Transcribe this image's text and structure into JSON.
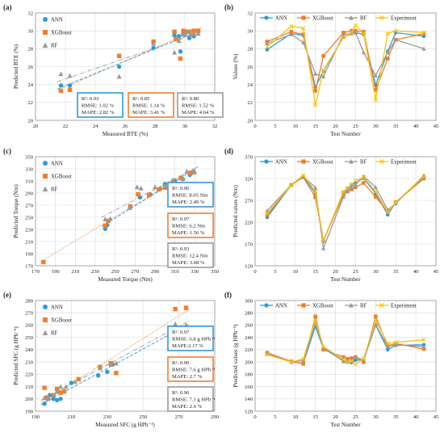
{
  "colors": {
    "ann": "#2e9bd6",
    "xgboost": "#f07e2c",
    "rf": "#9a9a9a",
    "experiment": "#f7c315",
    "box_ann": "#2e9bd6",
    "box_xgb": "#f07e2c",
    "box_rf": "#9a9a9a"
  },
  "chart_data": [
    {
      "panel": "(a)",
      "type": "scatter",
      "xlabel": "Measured BTE (%)",
      "ylabel": "Predicted BTE (%)",
      "xlim": [
        20,
        32
      ],
      "ylim": [
        20,
        32
      ],
      "xticks": [
        20,
        22,
        24,
        26,
        28,
        30,
        32
      ],
      "yticks": [
        20,
        22,
        24,
        26,
        28,
        30,
        32
      ],
      "legend": [
        "ANN",
        "XGBoost",
        "RF"
      ],
      "series": [
        {
          "name": "ANN",
          "points": [
            [
              21.7,
              23.9
            ],
            [
              22.3,
              23.9
            ],
            [
              25.6,
              26.0
            ],
            [
              27.9,
              28.1
            ],
            [
              29.3,
              29.5
            ],
            [
              29.6,
              29.4
            ],
            [
              29.7,
              27.7
            ],
            [
              29.9,
              29.8
            ],
            [
              30.0,
              29.6
            ],
            [
              30.1,
              29.9
            ],
            [
              30.3,
              29.2
            ],
            [
              30.6,
              29.4
            ]
          ]
        },
        {
          "name": "XGBoost",
          "points": [
            [
              21.7,
              23.3
            ],
            [
              22.3,
              23.4
            ],
            [
              25.6,
              27.2
            ],
            [
              27.9,
              28.8
            ],
            [
              29.3,
              29.9
            ],
            [
              29.4,
              29.1
            ],
            [
              29.7,
              26.9
            ],
            [
              29.9,
              30.0
            ],
            [
              30.0,
              29.8
            ],
            [
              30.3,
              29.9
            ],
            [
              30.6,
              30.0
            ],
            [
              30.9,
              30.0
            ]
          ]
        },
        {
          "name": "RF",
          "points": [
            [
              21.7,
              25.2
            ],
            [
              22.3,
              25.0
            ],
            [
              25.6,
              24.9
            ],
            [
              27.9,
              28.6
            ],
            [
              29.3,
              27.6
            ],
            [
              29.6,
              28.9
            ],
            [
              29.8,
              29.6
            ],
            [
              30.0,
              29.6
            ],
            [
              30.2,
              29.9
            ],
            [
              30.4,
              29.6
            ],
            [
              30.6,
              29.7
            ],
            [
              30.9,
              29.7
            ]
          ]
        }
      ],
      "stats": [
        {
          "model": "ANN",
          "r2": "R²: 0.93",
          "rmse": "RMSE: 1.02 %",
          "mape": "MAPE: 2.82 %"
        },
        {
          "model": "XGBoost",
          "r2": "R²: 0.85",
          "rmse": "RMSE: 1.14 %",
          "mape": "MAPE: 3.41 %"
        },
        {
          "model": "RF",
          "r2": "R²: 0.80",
          "rmse": "RMSE: 1.52 %",
          "mape": "MAPE: 4.64 %"
        }
      ]
    },
    {
      "panel": "(b)",
      "type": "line",
      "xlabel": "Test Number",
      "ylabel": "Values (%)",
      "xlim": [
        0,
        45
      ],
      "ylim": [
        20,
        32
      ],
      "xticks": [
        0,
        5,
        10,
        15,
        20,
        25,
        30,
        35,
        40,
        45
      ],
      "yticks": [
        20,
        22,
        24,
        26,
        28,
        30,
        32
      ],
      "x": [
        3,
        9,
        12,
        15,
        17,
        22,
        24,
        25,
        27,
        30,
        33,
        35,
        42
      ],
      "legend": [
        "ANN",
        "XGBoost",
        "RF",
        "Experiment"
      ],
      "series": [
        {
          "name": "ANN",
          "values": [
            27.9,
            29.7,
            29.5,
            23.7,
            25.5,
            29.3,
            29.7,
            29.8,
            29.6,
            23.9,
            27.7,
            29.8,
            29.4
          ]
        },
        {
          "name": "XGBoost",
          "values": [
            28.8,
            29.9,
            29.6,
            23.3,
            27.2,
            29.8,
            30.0,
            30.0,
            29.9,
            23.4,
            26.9,
            29.0,
            29.7
          ]
        },
        {
          "name": "RF",
          "values": [
            28.6,
            29.6,
            28.7,
            25.2,
            24.9,
            29.6,
            29.7,
            29.8,
            27.6,
            25.0,
            27.6,
            29.0,
            28.0
          ]
        },
        {
          "name": "Experiment",
          "values": [
            28.2,
            30.5,
            30.3,
            21.7,
            25.6,
            29.3,
            29.8,
            30.6,
            29.7,
            22.3,
            29.7,
            30.0,
            29.8
          ]
        }
      ]
    },
    {
      "panel": "(c)",
      "type": "scatter",
      "xlabel": "Measured Torque (Nm)",
      "ylabel": "Predicted Torque (Nm)",
      "xlim": [
        170,
        350
      ],
      "ylim": [
        170,
        350
      ],
      "xticks": [
        170,
        190,
        210,
        230,
        250,
        270,
        290,
        310,
        330,
        350
      ],
      "yticks": [
        170,
        190,
        210,
        230,
        250,
        270,
        290,
        310,
        330,
        350
      ],
      "legend": [
        "ANN",
        "XGBoost",
        "RF"
      ],
      "series": [
        {
          "name": "ANN",
          "points": [
            [
              240,
              231
            ],
            [
              242,
              237
            ],
            [
              265,
              266
            ],
            [
              275,
              283
            ],
            [
              285,
              288
            ],
            [
              295,
              297
            ],
            [
              300,
              305
            ],
            [
              305,
              304
            ],
            [
              310,
              310
            ],
            [
              318,
              313
            ],
            [
              325,
              320
            ],
            [
              328,
              324
            ]
          ]
        },
        {
          "name": "XGBoost",
          "points": [
            [
              178,
              176
            ],
            [
              240,
              236
            ],
            [
              243,
              244
            ],
            [
              265,
              268
            ],
            [
              273,
              288
            ],
            [
              284,
              287
            ],
            [
              294,
              296
            ],
            [
              300,
              299
            ],
            [
              308,
              308
            ],
            [
              316,
              315
            ],
            [
              325,
              323
            ],
            [
              328,
              324
            ]
          ]
        },
        {
          "name": "RF",
          "points": [
            [
              240,
              247
            ],
            [
              245,
              248
            ],
            [
              265,
              266
            ],
            [
              272,
              300
            ],
            [
              276,
              298
            ],
            [
              290,
              300
            ],
            [
              300,
              303
            ],
            [
              308,
              312
            ],
            [
              318,
              314
            ],
            [
              322,
              326
            ],
            [
              328,
              327
            ],
            [
              330,
              325
            ]
          ]
        }
      ],
      "stats": [
        {
          "model": "ANN",
          "r2": "R²: 0.96",
          "rmse": "RMSE: 8.05 Nm",
          "mape": "MAPE: 2.49 %"
        },
        {
          "model": "XGBoost",
          "r2": "R²: 0.97",
          "rmse": "RMSE: 6.2 Nm",
          "mape": "MAPE: 1.56 %"
        },
        {
          "model": "RF",
          "r2": "R²: 0.93",
          "rmse": "RMSE: 12.4 Nm",
          "mape": "MAPE: 3.68 %"
        }
      ]
    },
    {
      "panel": "(d)",
      "type": "line",
      "xlabel": "Test Number",
      "ylabel": "Predicted values (Nm)",
      "xlim": [
        0,
        45
      ],
      "ylim": [
        120,
        370
      ],
      "xticks": [
        0,
        5,
        10,
        15,
        20,
        25,
        30,
        35,
        40,
        45
      ],
      "yticks": [
        120,
        170,
        220,
        270,
        320,
        370
      ],
      "x": [
        3,
        9,
        12,
        15,
        17,
        22,
        23,
        24,
        25,
        27,
        30,
        33,
        35,
        42
      ],
      "legend": [
        "ANN",
        "XGBoost",
        "RF",
        "Experiment"
      ],
      "series": [
        {
          "name": "ANN",
          "values": [
            231,
            305,
            324,
            286,
            176,
            288,
            297,
            305,
            310,
            321,
            286,
            237,
            265,
            322
          ]
        },
        {
          "name": "XGBoost",
          "values": [
            236,
            305,
            323,
            277,
            178,
            283,
            290,
            295,
            300,
            310,
            278,
            244,
            266,
            320
          ]
        },
        {
          "name": "RF",
          "values": [
            246,
            306,
            325,
            299,
            160,
            278,
            292,
            300,
            306,
            325,
            300,
            248,
            263,
            327
          ]
        },
        {
          "name": "Experiment",
          "values": [
            240,
            305,
            328,
            290,
            178,
            290,
            298,
            307,
            315,
            323,
            290,
            243,
            266,
            325
          ]
        }
      ]
    },
    {
      "panel": "(e)",
      "type": "scatter",
      "xlabel": "Measured SFC (g HPh⁻¹)",
      "ylabel": "Predicted SFC (g HPh⁻¹)",
      "xlim": [
        190,
        290
      ],
      "ylim": [
        190,
        280
      ],
      "xticks": [
        190,
        210,
        230,
        250,
        270,
        290
      ],
      "yticks": [
        190,
        200,
        210,
        220,
        230,
        240,
        250,
        260,
        270,
        280
      ],
      "legend": [
        "ANN",
        "XGBoost",
        "RF"
      ],
      "series": [
        {
          "name": "ANN",
          "points": [
            [
              195,
              196
            ],
            [
              196,
              201
            ],
            [
              198,
              203
            ],
            [
              200,
              200
            ],
            [
              202,
              199
            ],
            [
              204,
              200
            ],
            [
              210,
              213
            ],
            [
              225,
              219
            ],
            [
              230,
              222
            ],
            [
              233,
              228
            ],
            [
              268,
              259
            ],
            [
              274,
              257
            ]
          ]
        },
        {
          "name": "XGBoost",
          "points": [
            [
              195,
              209
            ],
            [
              197,
              201
            ],
            [
              200,
              203
            ],
            [
              202,
              208
            ],
            [
              204,
              205
            ],
            [
              206,
              206
            ],
            [
              214,
              216
            ],
            [
              226,
              226
            ],
            [
              232,
              229
            ],
            [
              235,
              221
            ],
            [
              268,
              273
            ],
            [
              274,
              274
            ]
          ]
        },
        {
          "name": "RF",
          "points": [
            [
              195,
              201
            ],
            [
              197,
              200
            ],
            [
              200,
              203
            ],
            [
              202,
              206
            ],
            [
              204,
              210
            ],
            [
              207,
              210
            ],
            [
              212,
              214
            ],
            [
              226,
              225
            ],
            [
              232,
              228
            ],
            [
              235,
              229
            ],
            [
              268,
              261
            ],
            [
              274,
              260
            ]
          ]
        }
      ],
      "stats": [
        {
          "model": "ANN",
          "r2": "R²: 0.97",
          "rmse": "RMSE: 6.8 g HPh⁻¹",
          "mape": "MAPE:2.17 %"
        },
        {
          "model": "XGBoost",
          "r2": "R²: 0.90",
          "rmse": "RMSE: 7.6 g HPh⁻¹",
          "mape": "MAPE: 2.7 %"
        },
        {
          "model": "RF",
          "r2": "R²: 0.96",
          "rmse": "RMSE: 7.1 g HPh⁻¹",
          "mape": "MAPE: 2.6 %"
        }
      ]
    },
    {
      "panel": "(f)",
      "type": "line",
      "xlabel": "Test Number",
      "ylabel": "Predicted values (g HPh⁻¹)",
      "xlim": [
        0,
        45
      ],
      "ylim": [
        120,
        300
      ],
      "xticks": [
        0,
        5,
        10,
        15,
        20,
        25,
        30,
        35,
        40,
        45
      ],
      "yticks": [
        120,
        140,
        160,
        180,
        200,
        220,
        240,
        260,
        280,
        300
      ],
      "x": [
        3,
        9,
        12,
        15,
        17,
        22,
        23,
        24,
        25,
        27,
        30,
        33,
        35,
        42
      ],
      "legend": [
        "ANN",
        "XGBoost",
        "RF",
        "Experiment"
      ],
      "series": [
        {
          "name": "ANN",
          "values": [
            214,
            200,
            198,
            258,
            222,
            202,
            200,
            199,
            203,
            203,
            260,
            220,
            227,
            228
          ]
        },
        {
          "name": "XGBoost",
          "values": [
            215,
            201,
            197,
            274,
            220,
            208,
            205,
            206,
            208,
            200,
            274,
            226,
            230,
            221
          ]
        },
        {
          "name": "RF",
          "values": [
            213,
            200,
            203,
            262,
            224,
            201,
            203,
            200,
            208,
            203,
            261,
            225,
            228,
            225
          ]
        },
        {
          "name": "Experiment",
          "values": [
            212,
            200,
            205,
            268,
            225,
            204,
            200,
            202,
            196,
            205,
            268,
            230,
            232,
            236
          ]
        }
      ]
    }
  ]
}
